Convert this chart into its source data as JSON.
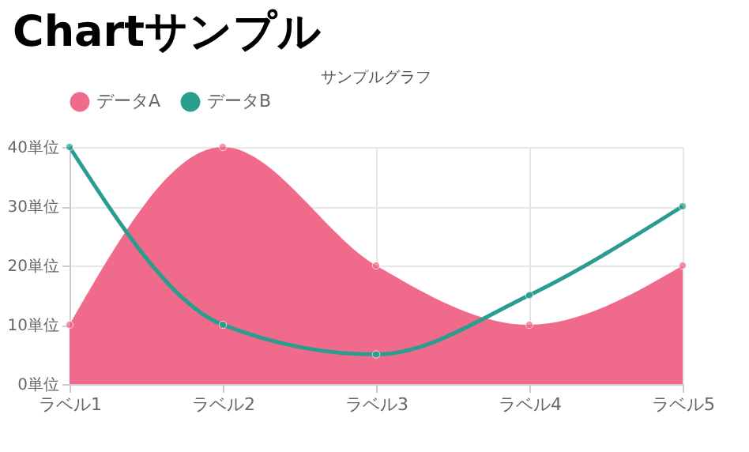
{
  "chart_data": {
    "type": "area",
    "title": "Chartサンプル",
    "subtitle": "サンプルグラフ",
    "categories": [
      "ラベル1",
      "ラベル2",
      "ラベル3",
      "ラベル4",
      "ラベル5"
    ],
    "series": [
      {
        "name": "データA",
        "color": "#f06a8c",
        "values": [
          10,
          40,
          20,
          10,
          20
        ]
      },
      {
        "name": "データB",
        "type": "line",
        "color": "#2a9d8f",
        "values": [
          40,
          10,
          5,
          15,
          30
        ]
      }
    ],
    "ylim": [
      0,
      40
    ],
    "yticks": [
      {
        "value": 0,
        "label": "0単位"
      },
      {
        "value": 10,
        "label": "10単位"
      },
      {
        "value": 20,
        "label": "20単位"
      },
      {
        "value": 30,
        "label": "30単位"
      },
      {
        "value": 40,
        "label": "40単位"
      }
    ],
    "grid": true,
    "legend": "top",
    "marker": "circle"
  }
}
